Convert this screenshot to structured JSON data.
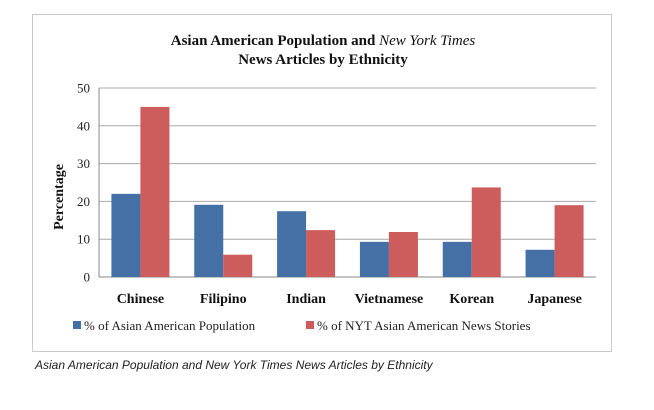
{
  "chart_data": {
    "type": "bar",
    "title_line1_prefix": "Asian American Population and ",
    "title_line1_italic": "New York Times",
    "title_line2": "News Articles by Ethnicity",
    "xlabel": "",
    "ylabel": "Percentage",
    "ylim": [
      0,
      50
    ],
    "yticks": [
      "0",
      "10",
      "20",
      "30",
      "40",
      "50"
    ],
    "grid": true,
    "legend_position": "bottom",
    "categories": [
      "Chinese",
      "Filipino",
      "Indian",
      "Vietnamese",
      "Korean",
      "Japanese"
    ],
    "series": [
      {
        "name": "% of Asian American Population",
        "color": "#4470a6",
        "values": [
          22,
          19.1,
          17.4,
          9.3,
          9.3,
          7.2
        ]
      },
      {
        "name": "% of NYT Asian American News Stories",
        "color": "#cd5c5c",
        "values": [
          45,
          5.9,
          12.4,
          11.9,
          23.7,
          19
        ]
      }
    ]
  },
  "caption": "Asian American Population and New York Times News Articles by Ethnicity"
}
